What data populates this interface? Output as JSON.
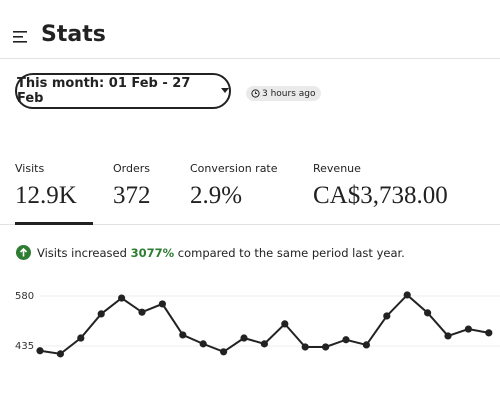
{
  "header": {
    "title": "Stats"
  },
  "filter": {
    "label": "This month: 01 Feb - 27 Feb",
    "updated": "3 hours ago"
  },
  "metrics": [
    {
      "label": "Visits",
      "value": "12.9K"
    },
    {
      "label": "Orders",
      "value": "372"
    },
    {
      "label": "Conversion rate",
      "value": "2.9%"
    },
    {
      "label": "Revenue",
      "value": "CA$3,738.00"
    }
  ],
  "message": {
    "prefix": "Visits increased ",
    "highlight": "3077%",
    "suffix": " compared to the same period last year."
  },
  "chart_data": {
    "type": "line",
    "color": "#222222",
    "values": [
      421,
      412,
      458,
      528,
      574,
      533,
      557,
      467,
      441,
      418,
      458,
      441,
      499,
      432,
      432,
      453,
      438,
      522,
      583,
      531,
      464,
      484,
      473
    ],
    "ylim": [
      400,
      600
    ],
    "yticks": [
      435,
      580
    ],
    "grid": true
  }
}
